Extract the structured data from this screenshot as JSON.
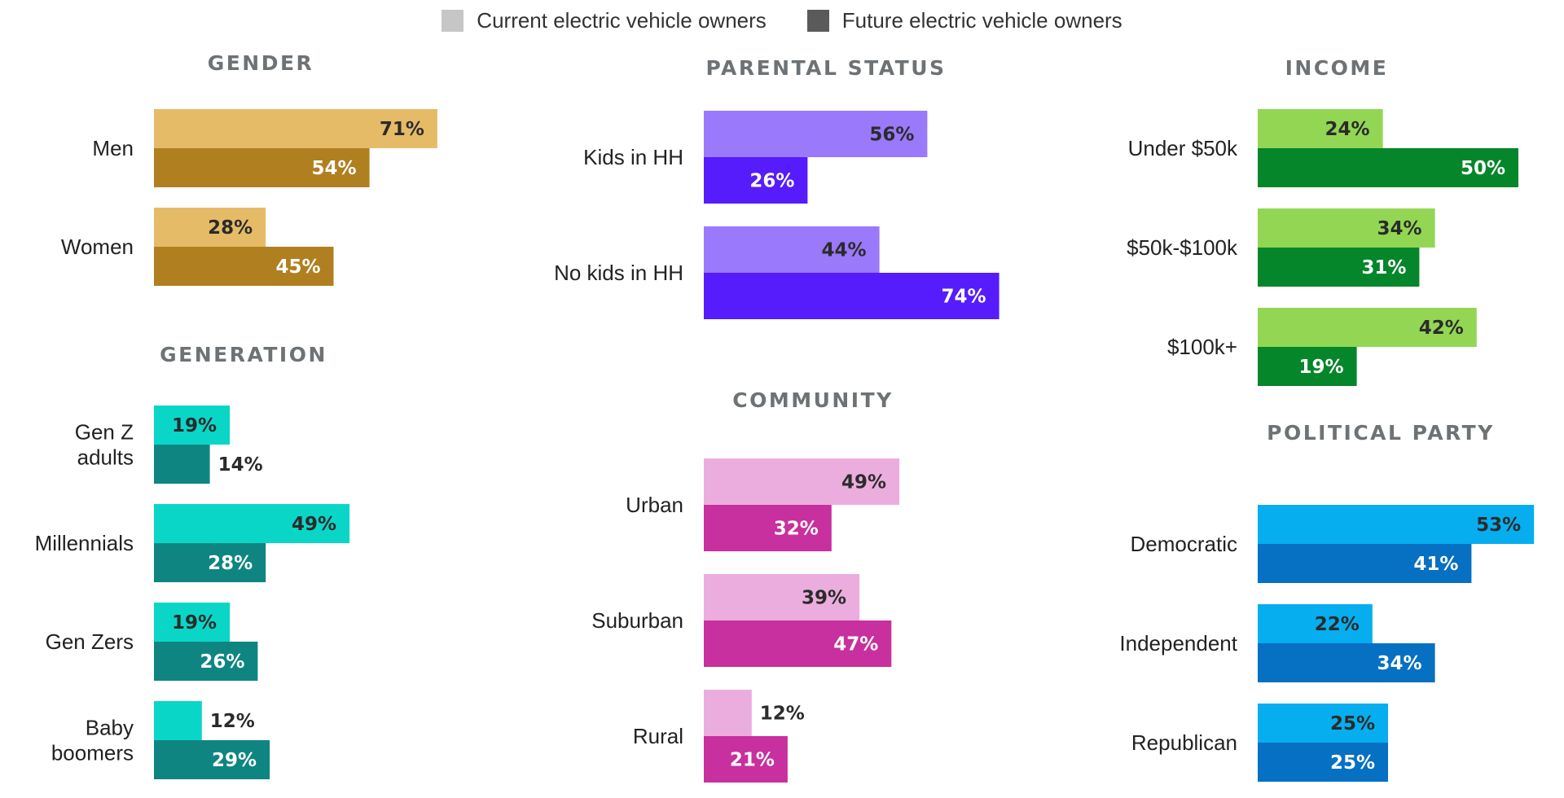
{
  "legend": {
    "current_label": "Current electric vehicle owners",
    "future_label": "Future electric vehicle owners",
    "current_color": "#c6c6c6",
    "future_color": "#5a5a5a"
  },
  "chart_data": [
    {
      "type": "bar",
      "orientation": "horizontal",
      "title": "GENDER",
      "categories": [
        "Men",
        "Women"
      ],
      "series": [
        {
          "name": "Current electric vehicle owners",
          "values": [
            71,
            28
          ],
          "color": "#e6bb68"
        },
        {
          "name": "Future electric vehicle owners",
          "values": [
            54,
            45
          ],
          "color": "#b07f1f"
        }
      ]
    },
    {
      "type": "bar",
      "orientation": "horizontal",
      "title": "GENERATION",
      "categories": [
        "Gen Z adults",
        "Millennials",
        "Gen Zers",
        "Baby boomers"
      ],
      "series": [
        {
          "name": "Current electric vehicle owners",
          "values": [
            19,
            49,
            19,
            12
          ],
          "color": "#0ad6c7"
        },
        {
          "name": "Future electric vehicle owners",
          "values": [
            14,
            28,
            26,
            29
          ],
          "color": "#0e8581"
        }
      ]
    },
    {
      "type": "bar",
      "orientation": "horizontal",
      "title": "PARENTAL STATUS",
      "categories": [
        "Kids in HH",
        "No kids in HH"
      ],
      "series": [
        {
          "name": "Current electric vehicle owners",
          "values": [
            56,
            44
          ],
          "color": "#9a79fb"
        },
        {
          "name": "Future electric vehicle owners",
          "values": [
            26,
            74
          ],
          "color": "#561cfb"
        }
      ]
    },
    {
      "type": "bar",
      "orientation": "horizontal",
      "title": "COMMUNITY",
      "categories": [
        "Urban",
        "Suburban",
        "Rural"
      ],
      "series": [
        {
          "name": "Current electric vehicle owners",
          "values": [
            49,
            39,
            12
          ],
          "color": "#ebadde"
        },
        {
          "name": "Future electric vehicle owners",
          "values": [
            32,
            47,
            21
          ],
          "color": "#c7309e"
        }
      ]
    },
    {
      "type": "bar",
      "orientation": "horizontal",
      "title": "INCOME",
      "categories": [
        "Under $50k",
        "$50k-$100k",
        "$100k+"
      ],
      "series": [
        {
          "name": "Current electric vehicle owners",
          "values": [
            24,
            34,
            42
          ],
          "color": "#93d654"
        },
        {
          "name": "Future electric vehicle owners",
          "values": [
            50,
            31,
            19
          ],
          "color": "#05862a"
        }
      ]
    },
    {
      "type": "bar",
      "orientation": "horizontal",
      "title": "POLITICAL PARTY",
      "categories": [
        "Democratic",
        "Independent",
        "Republican"
      ],
      "series": [
        {
          "name": "Current electric vehicle owners",
          "values": [
            53,
            22,
            25
          ],
          "color": "#06aeef"
        },
        {
          "name": "Future electric vehicle owners",
          "values": [
            41,
            34,
            25
          ],
          "color": "#0670c2"
        }
      ]
    }
  ]
}
